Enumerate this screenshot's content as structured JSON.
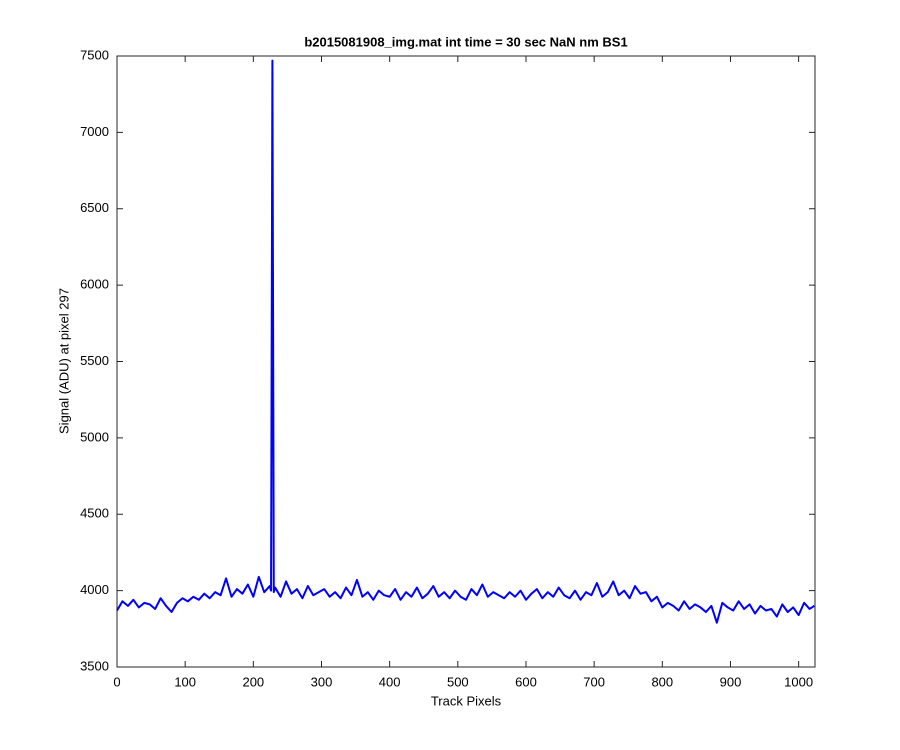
{
  "chart_data": {
    "type": "line",
    "title": "b2015081908_img.mat int time = 30 sec  NaN nm BS1",
    "x_label": "Track Pixels",
    "y_label": "Signal (ADU) at pixel 297",
    "x": [
      0,
      8,
      16,
      24,
      32,
      40,
      48,
      56,
      64,
      72,
      80,
      88,
      96,
      104,
      112,
      120,
      128,
      136,
      144,
      152,
      160,
      168,
      176,
      184,
      192,
      200,
      208,
      216,
      224,
      226,
      228,
      230,
      232,
      240,
      248,
      256,
      264,
      272,
      280,
      288,
      296,
      304,
      312,
      320,
      328,
      336,
      344,
      352,
      360,
      368,
      376,
      384,
      392,
      400,
      408,
      416,
      424,
      432,
      440,
      448,
      456,
      464,
      472,
      480,
      488,
      496,
      504,
      512,
      520,
      528,
      536,
      544,
      552,
      560,
      568,
      576,
      584,
      592,
      600,
      608,
      616,
      624,
      632,
      640,
      648,
      656,
      664,
      672,
      680,
      688,
      696,
      704,
      712,
      720,
      728,
      736,
      744,
      752,
      760,
      768,
      776,
      784,
      792,
      800,
      808,
      816,
      824,
      832,
      840,
      848,
      856,
      864,
      872,
      880,
      888,
      896,
      904,
      912,
      920,
      928,
      936,
      944,
      952,
      960,
      968,
      976,
      984,
      992,
      1000,
      1008,
      1016,
      1023
    ],
    "series": [
      {
        "name": "signal",
        "color": "#0000ff",
        "values": [
          3870,
          3930,
          3900,
          3940,
          3890,
          3920,
          3910,
          3880,
          3950,
          3900,
          3860,
          3920,
          3950,
          3930,
          3960,
          3940,
          3980,
          3950,
          3990,
          3970,
          4080,
          3960,
          4010,
          3980,
          4040,
          3960,
          4090,
          3990,
          4030,
          4000,
          7470,
          3990,
          4020,
          3960,
          4060,
          3980,
          4010,
          3950,
          4030,
          3970,
          3990,
          4010,
          3960,
          3990,
          3950,
          4020,
          3970,
          4070,
          3960,
          3990,
          3940,
          4000,
          3970,
          3960,
          4010,
          3940,
          3990,
          3960,
          4020,
          3950,
          3980,
          4030,
          3960,
          3990,
          3950,
          4000,
          3960,
          3940,
          4010,
          3970,
          4040,
          3960,
          3990,
          3970,
          3950,
          3990,
          3960,
          4000,
          3940,
          3980,
          4010,
          3950,
          3990,
          3960,
          4020,
          3970,
          3950,
          4000,
          3940,
          3990,
          3970,
          4050,
          3960,
          3990,
          4060,
          3970,
          4000,
          3950,
          4030,
          3980,
          3990,
          3930,
          3960,
          3890,
          3920,
          3900,
          3870,
          3930,
          3880,
          3910,
          3890,
          3860,
          3900,
          3790,
          3920,
          3890,
          3870,
          3930,
          3880,
          3910,
          3850,
          3900,
          3870,
          3880,
          3830,
          3910,
          3860,
          3890,
          3840,
          3920,
          3880,
          3900
        ]
      }
    ],
    "xlim": [
      0,
      1024
    ],
    "xticks": [
      0,
      100,
      200,
      300,
      400,
      500,
      600,
      700,
      800,
      900,
      1000
    ],
    "ylim": [
      3500,
      7500
    ],
    "yticks": [
      3500,
      4000,
      4500,
      5000,
      5500,
      6000,
      6500,
      7000,
      7500
    ],
    "grid": false
  }
}
